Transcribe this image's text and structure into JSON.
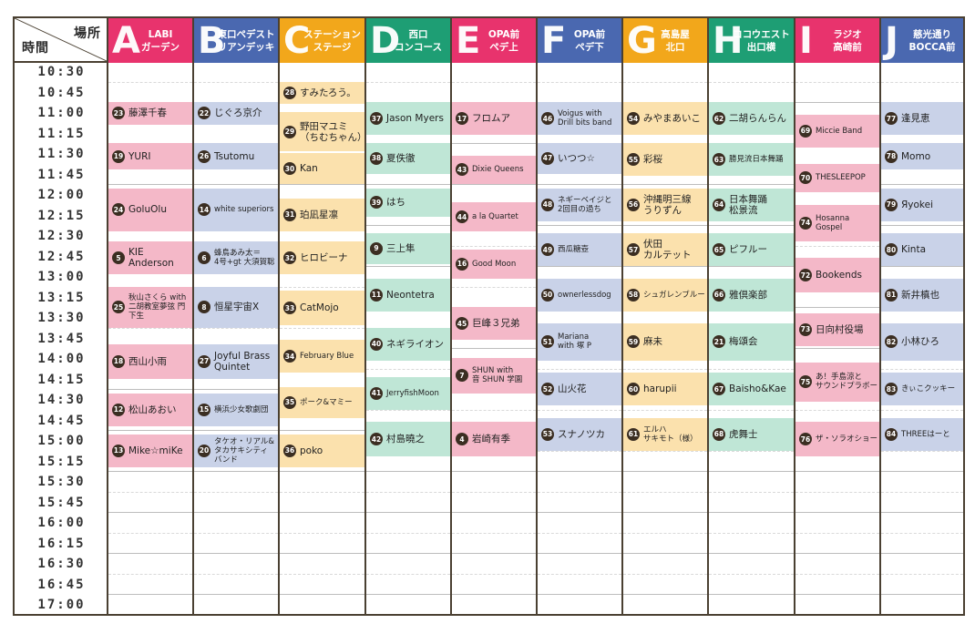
{
  "header": {
    "place_label": "場所",
    "time_label": "時間"
  },
  "times": [
    "10:30",
    "10:45",
    "11:00",
    "11:15",
    "11:30",
    "11:45",
    "12:00",
    "12:15",
    "12:30",
    "12:45",
    "13:00",
    "13:15",
    "13:30",
    "13:45",
    "14:00",
    "14:15",
    "14:30",
    "14:45",
    "15:00",
    "15:15",
    "15:30",
    "15:45",
    "16:00",
    "16:15",
    "16:30",
    "16:45",
    "17:00"
  ],
  "stages": [
    {
      "letter": "A",
      "name": "LABI\nガーデン",
      "color": "#e8336d",
      "tint": "#f4b8c8",
      "events": [
        {
          "num": "23",
          "title": "藤澤千春",
          "start": 2.0,
          "end": 3.1
        },
        {
          "num": "19",
          "title": "YURI",
          "start": 4.0,
          "end": 5.3
        },
        {
          "num": "24",
          "title": "GoluOlu",
          "start": 6.2,
          "end": 8.3
        },
        {
          "num": "5",
          "title": "KIE Anderson",
          "start": 8.8,
          "end": 10.4
        },
        {
          "num": "25",
          "title": "秋山さくら with\n二胡教室夢弦 門下生",
          "start": 11.0,
          "end": 13.0,
          "small": true
        },
        {
          "num": "18",
          "title": "西山小雨",
          "start": 13.8,
          "end": 15.5
        },
        {
          "num": "12",
          "title": "松山あおい",
          "start": 16.2,
          "end": 17.8
        },
        {
          "num": "13",
          "title": "Mike☆miKe",
          "start": 18.2,
          "end": 19.8
        }
      ]
    },
    {
      "letter": "B",
      "name": "東口ペデスト\nリアンデッキ",
      "color": "#4a68b0",
      "tint": "#c9d2e8",
      "events": [
        {
          "num": "22",
          "title": "じぐろ京介",
          "start": 2.0,
          "end": 3.1
        },
        {
          "num": "26",
          "title": "Tsutomu",
          "start": 4.0,
          "end": 5.3
        },
        {
          "num": "14",
          "title": "white superiors",
          "start": 6.2,
          "end": 8.3,
          "small": true
        },
        {
          "num": "6",
          "title": "蜂鳥あみ太＝\n4号+gt 大須賀聡",
          "start": 8.8,
          "end": 10.4,
          "small": true
        },
        {
          "num": "8",
          "title": "恒星宇宙X",
          "start": 11.0,
          "end": 13.0
        },
        {
          "num": "27",
          "title": "Joyful Brass\nQuintet",
          "start": 13.8,
          "end": 15.5
        },
        {
          "num": "15",
          "title": "横浜少女歌劇団",
          "start": 16.2,
          "end": 17.8,
          "small": true
        },
        {
          "num": "20",
          "title": "タケオ・リアル&\nタカサキシティ\nバンド",
          "start": 18.2,
          "end": 19.8,
          "small": true
        }
      ]
    },
    {
      "letter": "C",
      "name": "ステーション\nステージ",
      "color": "#f2a71b",
      "tint": "#fbe1ad",
      "events": [
        {
          "num": "28",
          "title": "すみたろう。",
          "start": 1.0,
          "end": 2.1
        },
        {
          "num": "29",
          "title": "野田マユミ\n（ちむちゃん）",
          "start": 2.5,
          "end": 4.4
        },
        {
          "num": "30",
          "title": "Kan",
          "start": 4.5,
          "end": 6.0
        },
        {
          "num": "31",
          "title": "珀凪星凛",
          "start": 6.7,
          "end": 8.3
        },
        {
          "num": "32",
          "title": "ヒロビーナ",
          "start": 8.8,
          "end": 10.4
        },
        {
          "num": "33",
          "title": "CatMojo",
          "start": 11.2,
          "end": 12.9
        },
        {
          "num": "34",
          "title": "February Blue",
          "start": 13.6,
          "end": 15.2,
          "small": true
        },
        {
          "num": "35",
          "title": "ポーク&マミー",
          "start": 15.9,
          "end": 17.4,
          "small": true
        },
        {
          "num": "36",
          "title": "poko",
          "start": 18.2,
          "end": 19.8
        }
      ]
    },
    {
      "letter": "D",
      "name": "西口\nコンコース",
      "color": "#1e9e74",
      "tint": "#bfe6d6",
      "events": [
        {
          "num": "37",
          "title": "Jason Myers",
          "start": 2.0,
          "end": 3.6
        },
        {
          "num": "38",
          "title": "夏佚徹",
          "start": 4.0,
          "end": 5.5
        },
        {
          "num": "39",
          "title": "はち",
          "start": 6.2,
          "end": 7.6
        },
        {
          "num": "9",
          "title": "三上隼",
          "start": 8.4,
          "end": 9.9
        },
        {
          "num": "11",
          "title": "Neontetra",
          "start": 10.6,
          "end": 12.2
        },
        {
          "num": "40",
          "title": "ネギライオン",
          "start": 13.0,
          "end": 14.6
        },
        {
          "num": "41",
          "title": "JerryfishMoon",
          "start": 15.4,
          "end": 17.0,
          "small": true
        },
        {
          "num": "42",
          "title": "村島曉之",
          "start": 17.6,
          "end": 19.3
        }
      ]
    },
    {
      "letter": "E",
      "name": "OPA前\nペデ上",
      "color": "#e8336d",
      "tint": "#f4b8c8",
      "events": [
        {
          "num": "17",
          "title": "フロムア",
          "start": 2.0,
          "end": 3.6
        },
        {
          "num": "43",
          "title": "Dixie Queens",
          "start": 4.6,
          "end": 6.0,
          "small": true
        },
        {
          "num": "44",
          "title": "a la Quartet",
          "start": 6.9,
          "end": 8.3,
          "small": true
        },
        {
          "num": "16",
          "title": "Good Moon",
          "start": 9.2,
          "end": 10.6,
          "small": true
        },
        {
          "num": "45",
          "title": "巨峰３兄弟",
          "start": 12.0,
          "end": 13.6
        },
        {
          "num": "7",
          "title": "SHUN with\n音 SHUN 学園",
          "start": 14.5,
          "end": 16.2,
          "small": true
        },
        {
          "num": "4",
          "title": "岩崎有季",
          "start": 17.6,
          "end": 19.3
        }
      ]
    },
    {
      "letter": "F",
      "name": "OPA前\nペデ下",
      "color": "#4a68b0",
      "tint": "#c9d2e8",
      "events": [
        {
          "num": "46",
          "title": "Voigus with\nDrill bits band",
          "start": 2.0,
          "end": 3.6,
          "small": true
        },
        {
          "num": "47",
          "title": "いつつ☆",
          "start": 4.0,
          "end": 5.5
        },
        {
          "num": "48",
          "title": "ネギーベイジと\n2回目の過ち",
          "start": 6.2,
          "end": 7.8,
          "small": true
        },
        {
          "num": "49",
          "title": "西瓜糖壺",
          "start": 8.4,
          "end": 10.0,
          "small": true
        },
        {
          "num": "50",
          "title": "ownerlessdog",
          "start": 10.6,
          "end": 12.2,
          "small": true
        },
        {
          "num": "51",
          "title": "Mariana\nwith 塚 P",
          "start": 12.8,
          "end": 14.6,
          "small": true
        },
        {
          "num": "52",
          "title": "山火花",
          "start": 15.2,
          "end": 16.8
        },
        {
          "num": "53",
          "title": "スナノツカ",
          "start": 17.4,
          "end": 19.0
        }
      ]
    },
    {
      "letter": "G",
      "name": "高島屋\n北口",
      "color": "#f2a71b",
      "tint": "#fbe1ad",
      "events": [
        {
          "num": "54",
          "title": "みやまあいこ",
          "start": 2.0,
          "end": 3.6
        },
        {
          "num": "55",
          "title": "彩桜",
          "start": 4.0,
          "end": 5.6
        },
        {
          "num": "56",
          "title": "沖縄明三線\nうりずん",
          "start": 6.2,
          "end": 7.8
        },
        {
          "num": "57",
          "title": "伏田\nカルテット",
          "start": 8.4,
          "end": 10.0
        },
        {
          "num": "58",
          "title": "シュガレンブルー",
          "start": 10.6,
          "end": 12.2,
          "small": true
        },
        {
          "num": "59",
          "title": "麻未",
          "start": 12.8,
          "end": 14.6
        },
        {
          "num": "60",
          "title": "harupii",
          "start": 15.2,
          "end": 16.8
        },
        {
          "num": "61",
          "title": "エルハ\nサキモト（様）",
          "start": 17.4,
          "end": 19.0,
          "small": true
        }
      ]
    },
    {
      "letter": "H",
      "name": "ココウエスト\n出口横",
      "color": "#1e9e74",
      "tint": "#bfe6d6",
      "events": [
        {
          "num": "62",
          "title": "二胡らんらん",
          "start": 2.0,
          "end": 3.6
        },
        {
          "num": "63",
          "title": "勝見流日本舞踊",
          "start": 4.0,
          "end": 5.6,
          "small": true
        },
        {
          "num": "64",
          "title": "日本舞踊\n松景流",
          "start": 6.2,
          "end": 7.8
        },
        {
          "num": "65",
          "title": "ピフルー",
          "start": 8.4,
          "end": 10.0
        },
        {
          "num": "66",
          "title": "雅倶楽部",
          "start": 10.6,
          "end": 12.2
        },
        {
          "num": "21",
          "title": "梅頌会",
          "start": 12.8,
          "end": 14.6
        },
        {
          "num": "67",
          "title": "Baisho&Kae",
          "start": 15.2,
          "end": 16.8
        },
        {
          "num": "68",
          "title": "虎舞士",
          "start": 17.4,
          "end": 19.0
        }
      ]
    },
    {
      "letter": "I",
      "name": "ラジオ\n高崎前",
      "color": "#e8336d",
      "tint": "#f4b8c8",
      "events": [
        {
          "num": "69",
          "title": "Miccie Band",
          "start": 2.6,
          "end": 4.2,
          "small": true
        },
        {
          "num": "70",
          "title": "THESLEEPOP",
          "start": 5.0,
          "end": 6.4,
          "small": true
        },
        {
          "num": "74",
          "title": "Hosanna\nGospel",
          "start": 7.0,
          "end": 8.8,
          "small": true
        },
        {
          "num": "72",
          "title": "Bookends",
          "start": 9.6,
          "end": 11.3
        },
        {
          "num": "73",
          "title": "日向村役場",
          "start": 12.3,
          "end": 13.9
        },
        {
          "num": "75",
          "title": "あ！手島涼と\nサウンドプラボー",
          "start": 14.7,
          "end": 16.6,
          "small": true
        },
        {
          "num": "76",
          "title": "ザ・ソラオショー",
          "start": 17.6,
          "end": 19.3,
          "small": true
        }
      ]
    },
    {
      "letter": "J",
      "name": "慈光通り\nBOCCA前",
      "color": "#4a68b0",
      "tint": "#c9d2e8",
      "events": [
        {
          "num": "77",
          "title": "逢見恵",
          "start": 2.0,
          "end": 3.6
        },
        {
          "num": "78",
          "title": "Momo",
          "start": 4.0,
          "end": 5.3
        },
        {
          "num": "79",
          "title": "Яyokei",
          "start": 6.2,
          "end": 7.8
        },
        {
          "num": "80",
          "title": "Kinta",
          "start": 8.4,
          "end": 10.0
        },
        {
          "num": "81",
          "title": "新井槙也",
          "start": 10.6,
          "end": 12.2
        },
        {
          "num": "82",
          "title": "小林ひろ",
          "start": 12.8,
          "end": 14.6
        },
        {
          "num": "83",
          "title": "きぃこクッキー",
          "start": 15.2,
          "end": 16.8,
          "small": true
        },
        {
          "num": "84",
          "title": "THREEはーと",
          "start": 17.4,
          "end": 19.0,
          "small": true
        }
      ]
    }
  ]
}
